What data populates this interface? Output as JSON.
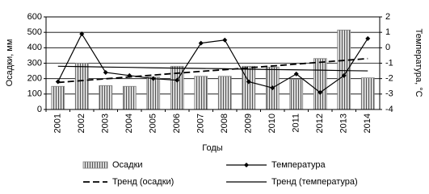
{
  "chart_data": {
    "type": "combo",
    "categories": [
      "2001",
      "2002",
      "2003",
      "2004",
      "2005",
      "2006",
      "2007",
      "2008",
      "2009",
      "2010",
      "2011",
      "2012",
      "2013",
      "2014"
    ],
    "x_label": "Годы",
    "y_label": "Осадки, мм",
    "y2_label": "Температура, °С",
    "ylim": [
      0,
      600
    ],
    "yticks": [
      0,
      100,
      200,
      300,
      400,
      500,
      600
    ],
    "y2lim": [
      -4,
      2
    ],
    "y2ticks": [
      -4,
      -3,
      -2,
      -1,
      0,
      1,
      2
    ],
    "grid": true,
    "series": [
      {
        "name": "Осадки",
        "type": "bar",
        "color": "#7f7f7f",
        "values": [
          150,
          300,
          155,
          150,
          210,
          280,
          215,
          215,
          280,
          275,
          195,
          330,
          515,
          205
        ]
      },
      {
        "name": "Температура",
        "type": "line",
        "axis": "y2",
        "color": "#000000",
        "style": "solid",
        "marker": "diamond",
        "values": [
          -2.2,
          0.9,
          -1.6,
          -1.8,
          -2.0,
          -2.1,
          0.3,
          0.5,
          -2.2,
          -2.6,
          -1.7,
          -2.9,
          -1.8,
          0.6
        ]
      },
      {
        "name": "Тренд (осадки)",
        "type": "line",
        "color": "#000000",
        "style": "dashed",
        "values": [
          175,
          187,
          199,
          211,
          223,
          235,
          247,
          258,
          270,
          282,
          294,
          306,
          318,
          330
        ]
      },
      {
        "name": "Тренд (температура)",
        "type": "line",
        "axis": "y2",
        "color": "#000000",
        "style": "solid",
        "values": [
          -1.2,
          -1.22,
          -1.25,
          -1.27,
          -1.3,
          -1.32,
          -1.34,
          -1.36,
          -1.39,
          -1.41,
          -1.43,
          -1.45,
          -1.48,
          -1.5
        ]
      }
    ]
  }
}
